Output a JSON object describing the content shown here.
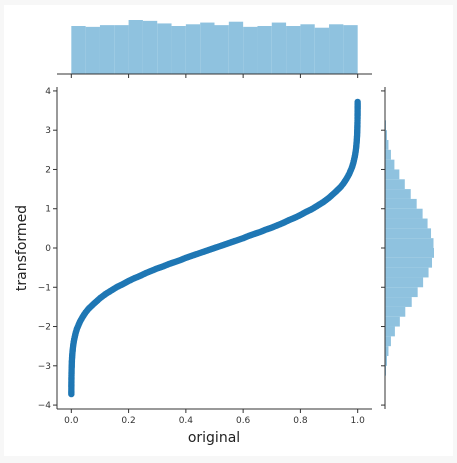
{
  "chart_data": {
    "type": "scatter",
    "title": "",
    "xlabel": "original",
    "ylabel": "transformed",
    "xlim": [
      -0.05,
      1.05
    ],
    "ylim": [
      -4.1,
      4.1
    ],
    "xticks": [
      {
        "value": 0.0,
        "label": "0.0"
      },
      {
        "value": 0.2,
        "label": "0.2"
      },
      {
        "value": 0.4,
        "label": "0.4"
      },
      {
        "value": 0.6,
        "label": "0.6"
      },
      {
        "value": 0.8,
        "label": "0.8"
      },
      {
        "value": 1.0,
        "label": "1.0"
      }
    ],
    "yticks": [
      {
        "value": -4,
        "label": "−4"
      },
      {
        "value": -3,
        "label": "−3"
      },
      {
        "value": -2,
        "label": "−2"
      },
      {
        "value": -1,
        "label": "−1"
      },
      {
        "value": 0,
        "label": "0"
      },
      {
        "value": 1,
        "label": "1"
      },
      {
        "value": 2,
        "label": "2"
      },
      {
        "value": 3,
        "label": "3"
      },
      {
        "value": 4,
        "label": "4"
      }
    ],
    "grid": false,
    "legend": "none",
    "point_color": "#1f77b4",
    "hist_color": "#8fc2df",
    "scatter_points": [
      {
        "x": 0.0001,
        "y": -3.72
      },
      {
        "x": 0.0002,
        "y": -3.54
      },
      {
        "x": 0.0005,
        "y": -3.29
      },
      {
        "x": 0.001,
        "y": -3.09
      },
      {
        "x": 0.002,
        "y": -2.88
      },
      {
        "x": 0.003,
        "y": -2.75
      },
      {
        "x": 0.005,
        "y": -2.58
      },
      {
        "x": 0.007,
        "y": -2.46
      },
      {
        "x": 0.01,
        "y": -2.33
      },
      {
        "x": 0.015,
        "y": -2.17
      },
      {
        "x": 0.02,
        "y": -2.05
      },
      {
        "x": 0.03,
        "y": -1.88
      },
      {
        "x": 0.04,
        "y": -1.75
      },
      {
        "x": 0.05,
        "y": -1.64
      },
      {
        "x": 0.06,
        "y": -1.55
      },
      {
        "x": 0.07,
        "y": -1.48
      },
      {
        "x": 0.08,
        "y": -1.41
      },
      {
        "x": 0.1,
        "y": -1.28
      },
      {
        "x": 0.12,
        "y": -1.17
      },
      {
        "x": 0.14,
        "y": -1.08
      },
      {
        "x": 0.16,
        "y": -0.99
      },
      {
        "x": 0.18,
        "y": -0.92
      },
      {
        "x": 0.2,
        "y": -0.84
      },
      {
        "x": 0.22,
        "y": -0.77
      },
      {
        "x": 0.24,
        "y": -0.71
      },
      {
        "x": 0.26,
        "y": -0.64
      },
      {
        "x": 0.28,
        "y": -0.58
      },
      {
        "x": 0.3,
        "y": -0.52
      },
      {
        "x": 0.32,
        "y": -0.47
      },
      {
        "x": 0.34,
        "y": -0.41
      },
      {
        "x": 0.36,
        "y": -0.36
      },
      {
        "x": 0.38,
        "y": -0.31
      },
      {
        "x": 0.4,
        "y": -0.25
      },
      {
        "x": 0.42,
        "y": -0.2
      },
      {
        "x": 0.44,
        "y": -0.15
      },
      {
        "x": 0.46,
        "y": -0.1
      },
      {
        "x": 0.48,
        "y": -0.05
      },
      {
        "x": 0.5,
        "y": 0.0
      },
      {
        "x": 0.52,
        "y": 0.05
      },
      {
        "x": 0.54,
        "y": 0.1
      },
      {
        "x": 0.56,
        "y": 0.15
      },
      {
        "x": 0.58,
        "y": 0.2
      },
      {
        "x": 0.6,
        "y": 0.25
      },
      {
        "x": 0.62,
        "y": 0.31
      },
      {
        "x": 0.64,
        "y": 0.36
      },
      {
        "x": 0.66,
        "y": 0.41
      },
      {
        "x": 0.68,
        "y": 0.47
      },
      {
        "x": 0.7,
        "y": 0.52
      },
      {
        "x": 0.72,
        "y": 0.58
      },
      {
        "x": 0.74,
        "y": 0.64
      },
      {
        "x": 0.76,
        "y": 0.71
      },
      {
        "x": 0.78,
        "y": 0.77
      },
      {
        "x": 0.8,
        "y": 0.84
      },
      {
        "x": 0.82,
        "y": 0.92
      },
      {
        "x": 0.84,
        "y": 0.99
      },
      {
        "x": 0.86,
        "y": 1.08
      },
      {
        "x": 0.88,
        "y": 1.17
      },
      {
        "x": 0.9,
        "y": 1.28
      },
      {
        "x": 0.92,
        "y": 1.41
      },
      {
        "x": 0.93,
        "y": 1.48
      },
      {
        "x": 0.94,
        "y": 1.55
      },
      {
        "x": 0.95,
        "y": 1.64
      },
      {
        "x": 0.96,
        "y": 1.75
      },
      {
        "x": 0.97,
        "y": 1.88
      },
      {
        "x": 0.98,
        "y": 2.05
      },
      {
        "x": 0.985,
        "y": 2.17
      },
      {
        "x": 0.99,
        "y": 2.33
      },
      {
        "x": 0.993,
        "y": 2.46
      },
      {
        "x": 0.995,
        "y": 2.58
      },
      {
        "x": 0.997,
        "y": 2.75
      },
      {
        "x": 0.998,
        "y": 2.88
      },
      {
        "x": 0.999,
        "y": 3.09
      },
      {
        "x": 0.9995,
        "y": 3.29
      },
      {
        "x": 0.9998,
        "y": 3.54
      },
      {
        "x": 0.9999,
        "y": 3.72
      }
    ],
    "marginal_x_hist": [
      {
        "bin_start": 0.0,
        "bin_end": 0.05,
        "count": 56
      },
      {
        "bin_start": 0.05,
        "bin_end": 0.1,
        "count": 55
      },
      {
        "bin_start": 0.1,
        "bin_end": 0.15,
        "count": 57
      },
      {
        "bin_start": 0.15,
        "bin_end": 0.2,
        "count": 57
      },
      {
        "bin_start": 0.2,
        "bin_end": 0.25,
        "count": 63
      },
      {
        "bin_start": 0.25,
        "bin_end": 0.3,
        "count": 62
      },
      {
        "bin_start": 0.3,
        "bin_end": 0.35,
        "count": 59
      },
      {
        "bin_start": 0.35,
        "bin_end": 0.4,
        "count": 56
      },
      {
        "bin_start": 0.4,
        "bin_end": 0.45,
        "count": 58
      },
      {
        "bin_start": 0.45,
        "bin_end": 0.5,
        "count": 60
      },
      {
        "bin_start": 0.5,
        "bin_end": 0.55,
        "count": 57
      },
      {
        "bin_start": 0.55,
        "bin_end": 0.6,
        "count": 61
      },
      {
        "bin_start": 0.6,
        "bin_end": 0.65,
        "count": 55
      },
      {
        "bin_start": 0.65,
        "bin_end": 0.7,
        "count": 56
      },
      {
        "bin_start": 0.7,
        "bin_end": 0.75,
        "count": 60
      },
      {
        "bin_start": 0.75,
        "bin_end": 0.8,
        "count": 56
      },
      {
        "bin_start": 0.8,
        "bin_end": 0.85,
        "count": 58
      },
      {
        "bin_start": 0.85,
        "bin_end": 0.9,
        "count": 54
      },
      {
        "bin_start": 0.9,
        "bin_end": 0.95,
        "count": 58
      },
      {
        "bin_start": 0.95,
        "bin_end": 1.0,
        "count": 57
      }
    ],
    "marginal_y_hist": [
      {
        "bin_start": -3.5,
        "bin_end": -3.25,
        "count": 1
      },
      {
        "bin_start": -3.25,
        "bin_end": -3.0,
        "count": 2
      },
      {
        "bin_start": -3.0,
        "bin_end": -2.75,
        "count": 4
      },
      {
        "bin_start": -2.75,
        "bin_end": -2.5,
        "count": 7
      },
      {
        "bin_start": -2.5,
        "bin_end": -2.25,
        "count": 12
      },
      {
        "bin_start": -2.25,
        "bin_end": -2.0,
        "count": 20
      },
      {
        "bin_start": -2.0,
        "bin_end": -1.75,
        "count": 30
      },
      {
        "bin_start": -1.75,
        "bin_end": -1.5,
        "count": 41
      },
      {
        "bin_start": -1.5,
        "bin_end": -1.25,
        "count": 54
      },
      {
        "bin_start": -1.25,
        "bin_end": -1.0,
        "count": 66
      },
      {
        "bin_start": -1.0,
        "bin_end": -0.75,
        "count": 77
      },
      {
        "bin_start": -0.75,
        "bin_end": -0.5,
        "count": 88
      },
      {
        "bin_start": -0.5,
        "bin_end": -0.25,
        "count": 95
      },
      {
        "bin_start": -0.25,
        "bin_end": 0.0,
        "count": 99
      },
      {
        "bin_start": 0.0,
        "bin_end": 0.25,
        "count": 98
      },
      {
        "bin_start": 0.25,
        "bin_end": 0.5,
        "count": 93
      },
      {
        "bin_start": 0.5,
        "bin_end": 0.75,
        "count": 86
      },
      {
        "bin_start": 0.75,
        "bin_end": 1.0,
        "count": 76
      },
      {
        "bin_start": 1.0,
        "bin_end": 1.25,
        "count": 64
      },
      {
        "bin_start": 1.25,
        "bin_end": 1.5,
        "count": 52
      },
      {
        "bin_start": 1.5,
        "bin_end": 1.75,
        "count": 40
      },
      {
        "bin_start": 1.75,
        "bin_end": 2.0,
        "count": 29
      },
      {
        "bin_start": 2.0,
        "bin_end": 2.25,
        "count": 19
      },
      {
        "bin_start": 2.25,
        "bin_end": 2.5,
        "count": 12
      },
      {
        "bin_start": 2.5,
        "bin_end": 2.75,
        "count": 7
      },
      {
        "bin_start": 2.75,
        "bin_end": 3.0,
        "count": 4
      },
      {
        "bin_start": 3.0,
        "bin_end": 3.25,
        "count": 2
      },
      {
        "bin_start": 3.25,
        "bin_end": 3.5,
        "count": 1
      }
    ]
  }
}
